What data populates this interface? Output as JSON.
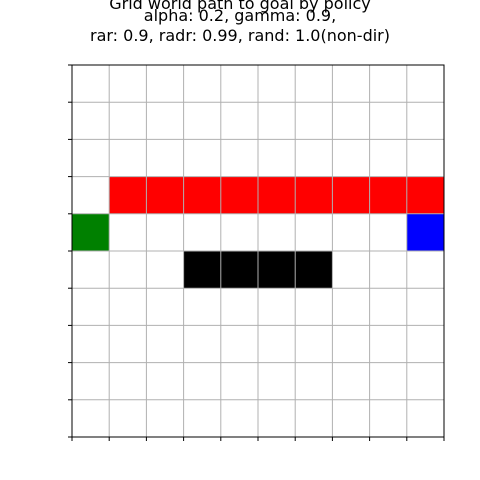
{
  "chart_data": {
    "type": "heatmap",
    "title_lines": [
      "Grid world path to goal by policy",
      "alpha: 0.2, gamma: 0.9,",
      "rar: 0.9, radr: 0.99, rand: 1.0(non-dir)"
    ],
    "grid": {
      "rows": 10,
      "cols": 10,
      "show_grid": true
    },
    "colors": {
      "empty": "#ffffff",
      "quicksand": "#ff0000",
      "wall": "#000000",
      "start": "#008000",
      "goal": "#0000ff",
      "gridline": "#b0b0b0"
    },
    "cells": {
      "quicksand": [
        [
          3,
          1
        ],
        [
          3,
          2
        ],
        [
          3,
          3
        ],
        [
          3,
          4
        ],
        [
          3,
          5
        ],
        [
          3,
          6
        ],
        [
          3,
          7
        ],
        [
          3,
          8
        ],
        [
          3,
          9
        ]
      ],
      "wall": [
        [
          5,
          3
        ],
        [
          5,
          4
        ],
        [
          5,
          5
        ],
        [
          5,
          6
        ]
      ],
      "start": [
        [
          4,
          0
        ]
      ],
      "goal": [
        [
          4,
          9
        ]
      ]
    }
  }
}
